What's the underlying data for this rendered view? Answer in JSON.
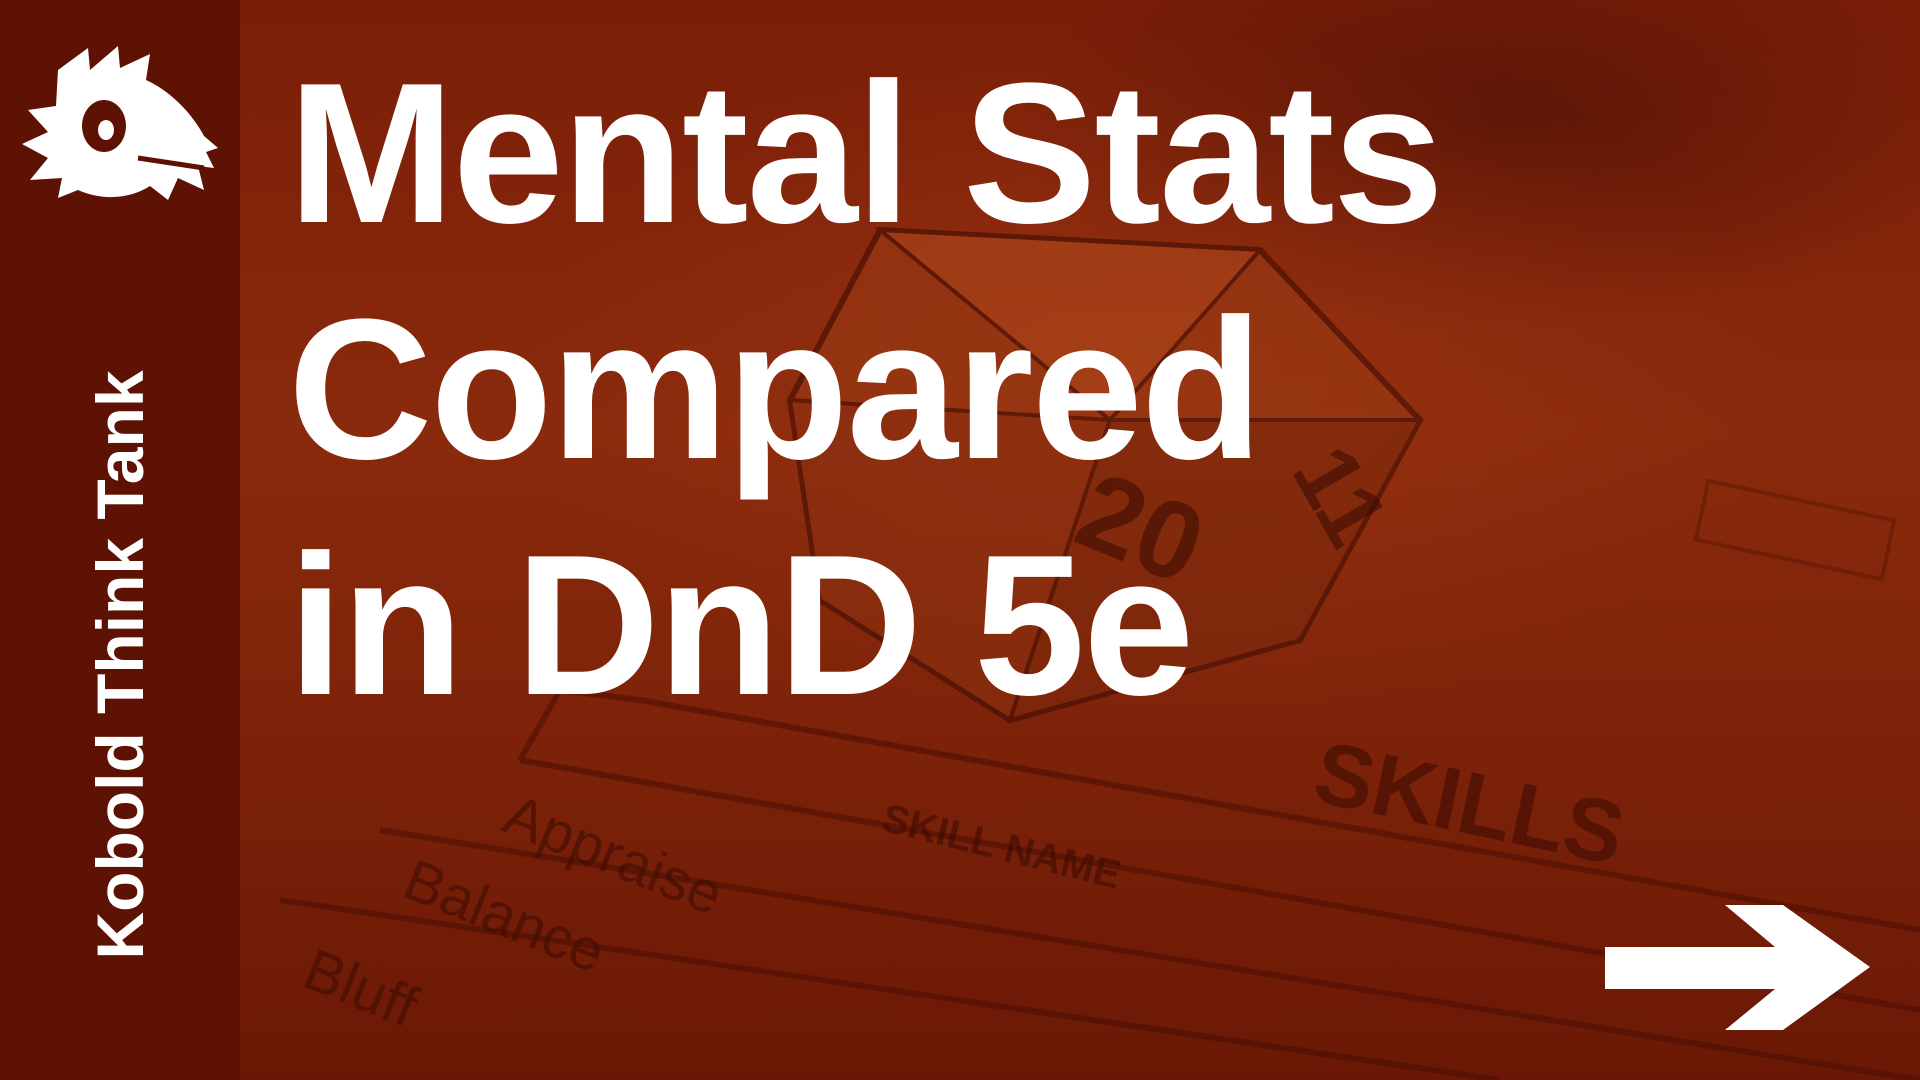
{
  "brand": {
    "name": "Kobold Think Tank",
    "logo_icon": "kobold-head-icon"
  },
  "title": {
    "lines": [
      "Mental Stats",
      "Compared",
      "in DnD 5e"
    ]
  },
  "background": {
    "texts": [
      "SKILLS",
      "SKILL NAME",
      "Appraise",
      "Balance",
      "Bluff",
      "20",
      "11"
    ]
  },
  "navigation": {
    "next_icon": "arrow-right-icon"
  },
  "colors": {
    "overlay": "#7a1e08",
    "sidebar": "#5e1204",
    "text": "#ffffff"
  }
}
